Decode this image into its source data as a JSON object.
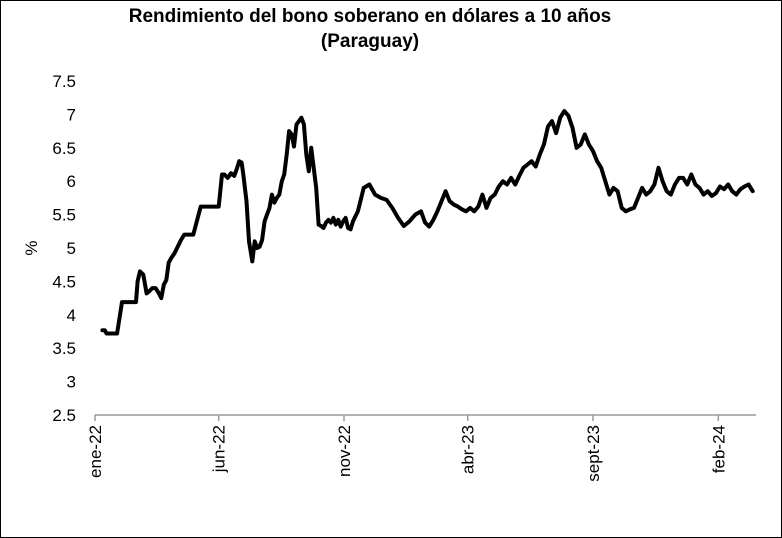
{
  "chart_data": {
    "type": "line",
    "title_line1": "Rendimiento del bono soberano en dólares a 10 años",
    "title_line2": "(Paraguay)",
    "ylabel": "%",
    "xlabel": "",
    "ylim": [
      2.5,
      7.5
    ],
    "yticks": [
      "2.5",
      "3",
      "3.5",
      "4",
      "4.5",
      "5",
      "5.5",
      "6",
      "6.5",
      "7",
      "7.5"
    ],
    "xticks": [
      {
        "label": "ene-22",
        "date": "2022-01-01"
      },
      {
        "label": "jun-22",
        "date": "2022-06-01"
      },
      {
        "label": "nov-22",
        "date": "2022-11-01"
      },
      {
        "label": "abr-23",
        "date": "2023-04-01"
      },
      {
        "label": "sept-23",
        "date": "2023-09-01"
      },
      {
        "label": "feb-24",
        "date": "2024-02-01"
      }
    ],
    "grid": false,
    "legend": "none",
    "line_color": "#000000",
    "series": [
      {
        "x": [
          "2022-01-10",
          "2022-01-13",
          "2022-01-15",
          "2022-01-20",
          "2022-01-28",
          "2022-02-03",
          "2022-02-08",
          "2022-02-15",
          "2022-02-20",
          "2022-02-22",
          "2022-02-25",
          "2022-03-01",
          "2022-03-05",
          "2022-03-08",
          "2022-03-12",
          "2022-03-16",
          "2022-03-20",
          "2022-03-23",
          "2022-03-26",
          "2022-03-29",
          "2022-04-01",
          "2022-04-04",
          "2022-04-08",
          "2022-04-12",
          "2022-04-16",
          "2022-04-20",
          "2022-04-25",
          "2022-05-01",
          "2022-05-10",
          "2022-05-20",
          "2022-05-26",
          "2022-05-28",
          "2022-06-01",
          "2022-06-05",
          "2022-06-08",
          "2022-06-12",
          "2022-06-16",
          "2022-06-20",
          "2022-06-23",
          "2022-06-26",
          "2022-06-29",
          "2022-07-01",
          "2022-07-05",
          "2022-07-08",
          "2022-07-12",
          "2022-07-15",
          "2022-07-18",
          "2022-07-21",
          "2022-07-24",
          "2022-07-27",
          "2022-07-30",
          "2022-08-02",
          "2022-08-05",
          "2022-08-08",
          "2022-08-11",
          "2022-08-14",
          "2022-08-17",
          "2022-08-20",
          "2022-08-23",
          "2022-08-26",
          "2022-08-29",
          "2022-09-01",
          "2022-09-04",
          "2022-09-07",
          "2022-09-10",
          "2022-09-13",
          "2022-09-16",
          "2022-09-19",
          "2022-09-22",
          "2022-09-25",
          "2022-09-28",
          "2022-10-01",
          "2022-10-04",
          "2022-10-07",
          "2022-10-10",
          "2022-10-13",
          "2022-10-16",
          "2022-10-19",
          "2022-10-22",
          "2022-10-25",
          "2022-10-28",
          "2022-10-31",
          "2022-11-03",
          "2022-11-06",
          "2022-11-09",
          "2022-11-12",
          "2022-11-18",
          "2022-11-25",
          "2022-12-02",
          "2022-12-09",
          "2022-12-16",
          "2022-12-23",
          "2022-12-30",
          "2023-01-06",
          "2023-01-13",
          "2023-01-20",
          "2023-01-27",
          "2023-02-03",
          "2023-02-08",
          "2023-02-13",
          "2023-02-18",
          "2023-02-23",
          "2023-02-28",
          "2023-03-05",
          "2023-03-10",
          "2023-03-15",
          "2023-03-20",
          "2023-03-25",
          "2023-03-30",
          "2023-04-04",
          "2023-04-09",
          "2023-04-14",
          "2023-04-19",
          "2023-04-24",
          "2023-04-29",
          "2023-05-04",
          "2023-05-09",
          "2023-05-14",
          "2023-05-19",
          "2023-05-24",
          "2023-05-29",
          "2023-06-03",
          "2023-06-08",
          "2023-06-13",
          "2023-06-18",
          "2023-06-23",
          "2023-06-28",
          "2023-07-03",
          "2023-07-08",
          "2023-07-13",
          "2023-07-18",
          "2023-07-23",
          "2023-07-28",
          "2023-08-02",
          "2023-08-07",
          "2023-08-12",
          "2023-08-17",
          "2023-08-22",
          "2023-08-27",
          "2023-09-01",
          "2023-09-06",
          "2023-09-11",
          "2023-09-16",
          "2023-09-21",
          "2023-09-26",
          "2023-10-01",
          "2023-10-06",
          "2023-10-11",
          "2023-10-16",
          "2023-10-21",
          "2023-10-26",
          "2023-10-31",
          "2023-11-05",
          "2023-11-10",
          "2023-11-15",
          "2023-11-20",
          "2023-11-25",
          "2023-11-30",
          "2023-12-05",
          "2023-12-10",
          "2023-12-15",
          "2023-12-20",
          "2023-12-25",
          "2023-12-30",
          "2024-01-04",
          "2024-01-09",
          "2024-01-14",
          "2024-01-19",
          "2024-01-24",
          "2024-01-29",
          "2024-02-03",
          "2024-02-08",
          "2024-02-13",
          "2024-02-18",
          "2024-02-23",
          "2024-02-28",
          "2024-03-04",
          "2024-03-09",
          "2024-03-14"
        ],
        "values": [
          3.77,
          3.77,
          3.72,
          3.72,
          3.72,
          4.19,
          4.19,
          4.19,
          4.19,
          4.5,
          4.65,
          4.6,
          4.32,
          4.35,
          4.4,
          4.4,
          4.32,
          4.25,
          4.45,
          4.52,
          4.78,
          4.85,
          4.92,
          5.02,
          5.12,
          5.2,
          5.2,
          5.2,
          5.62,
          5.62,
          5.62,
          5.62,
          5.62,
          6.1,
          6.1,
          6.05,
          6.12,
          6.08,
          6.18,
          6.3,
          6.28,
          6.1,
          5.7,
          5.1,
          4.8,
          5.1,
          5.0,
          5.02,
          5.12,
          5.4,
          5.5,
          5.6,
          5.8,
          5.68,
          5.75,
          5.8,
          6.0,
          6.1,
          6.4,
          6.75,
          6.7,
          6.52,
          6.85,
          6.9,
          6.95,
          6.85,
          6.4,
          6.15,
          6.5,
          6.2,
          5.9,
          5.35,
          5.33,
          5.3,
          5.38,
          5.42,
          5.38,
          5.45,
          5.35,
          5.42,
          5.32,
          5.4,
          5.45,
          5.3,
          5.28,
          5.4,
          5.55,
          5.9,
          5.95,
          5.8,
          5.75,
          5.72,
          5.6,
          5.45,
          5.33,
          5.4,
          5.5,
          5.55,
          5.38,
          5.32,
          5.42,
          5.55,
          5.7,
          5.85,
          5.7,
          5.65,
          5.62,
          5.58,
          5.55,
          5.6,
          5.55,
          5.62,
          5.8,
          5.6,
          5.75,
          5.8,
          5.92,
          6.0,
          5.95,
          6.05,
          5.95,
          6.08,
          6.2,
          6.25,
          6.3,
          6.22,
          6.4,
          6.55,
          6.82,
          6.9,
          6.72,
          6.95,
          7.05,
          6.98,
          6.8,
          6.5,
          6.55,
          6.7,
          6.55,
          6.45,
          6.3,
          6.2,
          6.0,
          5.8,
          5.9,
          5.85,
          5.6,
          5.55,
          5.58,
          5.6,
          5.75,
          5.9,
          5.8,
          5.85,
          5.95,
          6.2,
          6.0,
          5.85,
          5.8,
          5.95,
          6.05,
          6.05,
          5.95,
          6.1,
          5.95,
          5.9,
          5.8,
          5.85,
          5.78,
          5.82,
          5.92,
          5.88,
          5.95,
          5.85,
          5.8,
          5.88,
          5.92,
          5.95,
          5.85
        ]
      }
    ]
  }
}
